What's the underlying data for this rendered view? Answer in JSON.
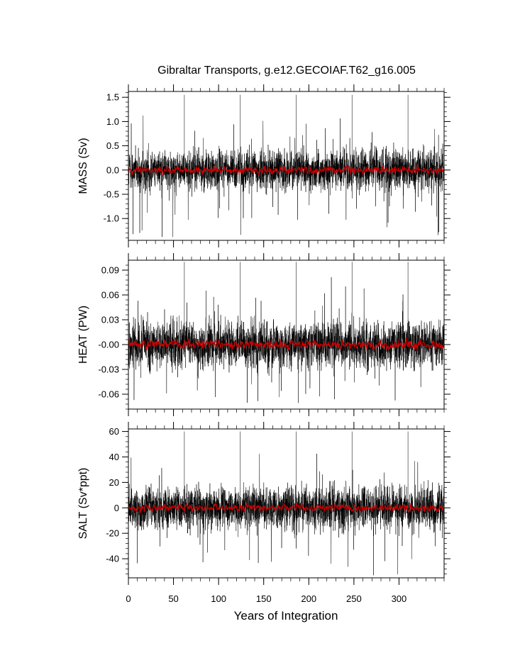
{
  "chart_data": {
    "type": "line",
    "title": "Gibraltar Transports, g.e12.GECOIAF.T62_g16.005",
    "xlabel": "Years of Integration",
    "xlim": [
      0,
      350
    ],
    "x_ticks": [
      0,
      50,
      100,
      150,
      200,
      250,
      300
    ],
    "x_tick_labels": [
      "0",
      "50",
      "100",
      "150",
      "200",
      "250",
      "300"
    ],
    "annual_peak_years": [
      0,
      62,
      124,
      186,
      248,
      310
    ],
    "series_colors": {
      "monthly": "#000000",
      "annual_mean": "#cc0000"
    },
    "panels": [
      {
        "id": "mass",
        "ylabel": "MASS (Sv)",
        "ylim": [
          -1.45,
          1.62
        ],
        "y_ticks": [
          -1.0,
          -0.5,
          0.0,
          0.5,
          1.0,
          1.5
        ],
        "y_tick_labels": [
          "-1.0",
          "-0.5",
          "0.0",
          "0.5",
          "1.0",
          "1.5"
        ],
        "series": [
          {
            "name": "",
            "kind": "monthly",
            "mean": 0.0,
            "typical_amplitude": 0.3,
            "max": 1.55,
            "min": -1.38
          },
          {
            "name": "",
            "kind": "annual_mean",
            "mean": 0.0,
            "typical_amplitude": 0.07
          }
        ]
      },
      {
        "id": "heat",
        "ylabel": "HEAT (PW)",
        "ylim": [
          -0.078,
          0.102
        ],
        "y_ticks": [
          -0.06,
          -0.03,
          0.0,
          0.03,
          0.06,
          0.09
        ],
        "y_tick_labels": [
          "-0.06",
          "-0.03",
          "-0.00",
          "0.03",
          "0.06",
          "0.09"
        ],
        "series": [
          {
            "name": "",
            "kind": "monthly",
            "mean": 0.0,
            "typical_amplitude": 0.02,
            "max": 0.1,
            "min": -0.078
          },
          {
            "name": "",
            "kind": "annual_mean",
            "mean": 0.0,
            "typical_amplitude": 0.005
          }
        ]
      },
      {
        "id": "salt",
        "ylabel": "SALT (Sv*ppt)",
        "ylim": [
          -55,
          62
        ],
        "y_ticks": [
          -40,
          -20,
          0,
          20,
          40,
          60
        ],
        "y_tick_labels": [
          "-40",
          "-20",
          "0",
          "20",
          "40",
          "60"
        ],
        "series": [
          {
            "name": "",
            "kind": "monthly",
            "mean": 0,
            "typical_amplitude": 12,
            "max": 60,
            "min": -53
          },
          {
            "name": "",
            "kind": "annual_mean",
            "mean": 0,
            "typical_amplitude": 2.5
          }
        ]
      }
    ]
  }
}
